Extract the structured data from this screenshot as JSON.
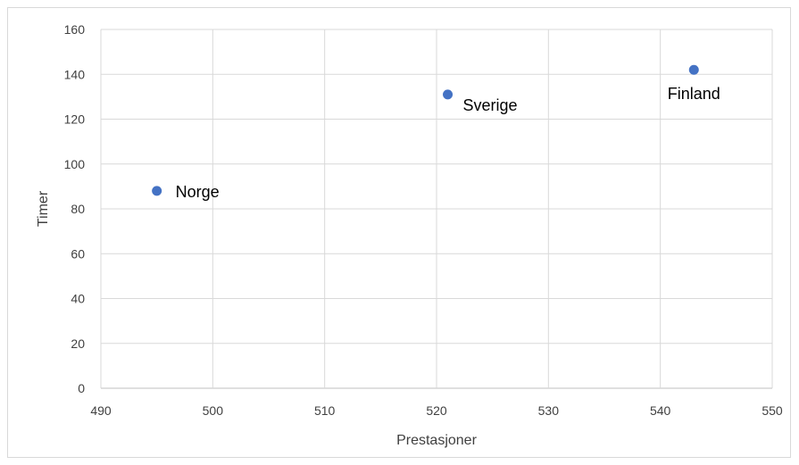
{
  "chart_data": {
    "type": "scatter",
    "xlabel": "Prestasjoner",
    "ylabel": "Timer",
    "xlim": [
      490,
      550
    ],
    "ylim": [
      0,
      160
    ],
    "x_ticks": [
      490,
      500,
      510,
      520,
      530,
      540,
      550
    ],
    "y_ticks": [
      0,
      20,
      40,
      60,
      80,
      100,
      120,
      140,
      160
    ],
    "grid": true,
    "points": [
      {
        "label": "Norge",
        "x": 495,
        "y": 88,
        "label_position": "right"
      },
      {
        "label": "Sverige",
        "x": 521,
        "y": 131,
        "label_position": "right-below"
      },
      {
        "label": "Finland",
        "x": 543,
        "y": 142,
        "label_position": "below"
      }
    ],
    "colors": {
      "marker": "#4472C4",
      "grid": "#d9d9d9",
      "axis": "#bfbfbf"
    }
  }
}
